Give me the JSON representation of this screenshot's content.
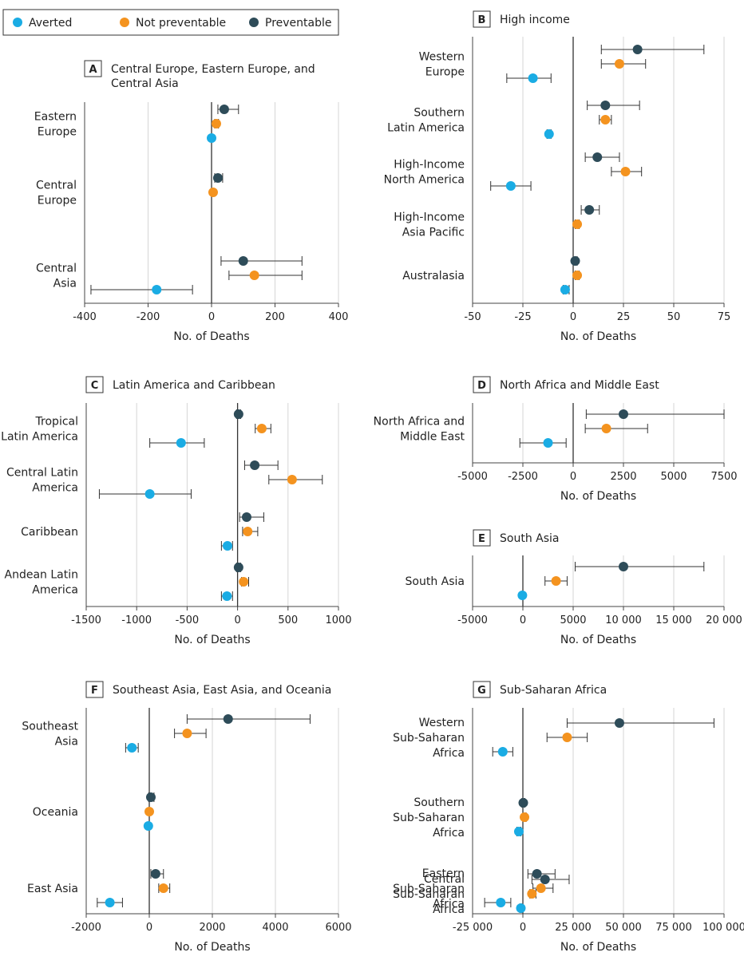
{
  "legend": {
    "items": [
      {
        "label": "Averted",
        "color": "#1aace4"
      },
      {
        "label": "Not preventable",
        "color": "#f4931f"
      },
      {
        "label": "Preventable",
        "color": "#2e4c59"
      }
    ]
  },
  "axis_label": "No. of Deaths",
  "chart_data": [
    {
      "type": "scatter",
      "panel": "A",
      "title_lines": [
        "Central Europe, Eastern Europe, and",
        "Central Asia"
      ],
      "xlabel": "No. of Deaths",
      "xlim": [
        -400,
        400
      ],
      "xticks": [
        -400,
        -200,
        0,
        200,
        400
      ],
      "xtick_labels": [
        "-400",
        "-200",
        "0",
        "200",
        "400"
      ],
      "categories": [
        {
          "label": [
            "Eastern",
            "Europe"
          ],
          "points": [
            {
              "series": "Preventable",
              "value": 40,
              "low": 20,
              "high": 85
            },
            {
              "series": "Not preventable",
              "value": 15,
              "low": 10,
              "high": 22
            },
            {
              "series": "Averted",
              "value": 0
            }
          ]
        },
        {
          "label": [
            "Central",
            "Europe"
          ],
          "points": [
            {
              "series": "Preventable",
              "value": 20,
              "low": 10,
              "high": 35
            },
            {
              "series": "Not preventable",
              "value": 5
            }
          ]
        },
        {
          "label": [
            "Central",
            "Asia"
          ],
          "points": [
            {
              "series": "Preventable",
              "value": 100,
              "low": 30,
              "high": 285
            },
            {
              "series": "Not preventable",
              "value": 135,
              "low": 55,
              "high": 285
            },
            {
              "series": "Averted",
              "value": -173,
              "low": -380,
              "high": -60
            }
          ]
        }
      ]
    },
    {
      "type": "scatter",
      "panel": "B",
      "title_lines": [
        "High income"
      ],
      "xlabel": "No. of Deaths",
      "xlim": [
        -50,
        75
      ],
      "xticks": [
        -50,
        -25,
        0,
        25,
        50,
        75
      ],
      "xtick_labels": [
        "-50",
        "-25",
        "0",
        "25",
        "50",
        "75"
      ],
      "categories": [
        {
          "label": [
            "Western",
            "Europe"
          ],
          "points": [
            {
              "series": "Preventable",
              "value": 32,
              "low": 14,
              "high": 65
            },
            {
              "series": "Not preventable",
              "value": 23,
              "low": 14,
              "high": 36
            },
            {
              "series": "Averted",
              "value": -20,
              "low": -33,
              "high": -11
            }
          ]
        },
        {
          "label": [
            "Southern",
            "Latin America"
          ],
          "points": [
            {
              "series": "Preventable",
              "value": 16,
              "low": 7,
              "high": 33
            },
            {
              "series": "Not preventable",
              "value": 16,
              "low": 13,
              "high": 19
            },
            {
              "series": "Averted",
              "value": -12,
              "low": -13,
              "high": -11
            }
          ]
        },
        {
          "label": [
            "High-Income",
            "North America"
          ],
          "points": [
            {
              "series": "Preventable",
              "value": 12,
              "low": 6,
              "high": 23
            },
            {
              "series": "Not preventable",
              "value": 26,
              "low": 19,
              "high": 34
            },
            {
              "series": "Averted",
              "value": -31,
              "low": -41,
              "high": -21
            }
          ]
        },
        {
          "label": [
            "High-Income",
            "Asia Pacific"
          ],
          "points": [
            {
              "series": "Preventable",
              "value": 8,
              "low": 4,
              "high": 13
            },
            {
              "series": "Not preventable",
              "value": 2,
              "low": 1,
              "high": 3
            }
          ]
        },
        {
          "label": [
            "Australasia"
          ],
          "points": [
            {
              "series": "Preventable",
              "value": 1,
              "low": 0,
              "high": 2
            },
            {
              "series": "Not preventable",
              "value": 2,
              "low": 1,
              "high": 3
            },
            {
              "series": "Averted",
              "value": -4,
              "low": -5,
              "high": -2
            }
          ]
        }
      ]
    },
    {
      "type": "scatter",
      "panel": "C",
      "title_lines": [
        "Latin America and Caribbean"
      ],
      "xlabel": "No. of Deaths",
      "xlim": [
        -1500,
        1000
      ],
      "xticks": [
        -1500,
        -1000,
        -500,
        0,
        500,
        1000
      ],
      "xtick_labels": [
        "-1500",
        "-1000",
        "-500",
        "0",
        "500",
        "1000"
      ],
      "categories": [
        {
          "label": [
            "Tropical",
            "Latin America"
          ],
          "points": [
            {
              "series": "Preventable",
              "value": 10,
              "low": -10,
              "high": 30
            },
            {
              "series": "Not preventable",
              "value": 240,
              "low": 175,
              "high": 330
            },
            {
              "series": "Averted",
              "value": -560,
              "low": -870,
              "high": -330
            }
          ]
        },
        {
          "label": [
            "Central Latin",
            "America"
          ],
          "points": [
            {
              "series": "Preventable",
              "value": 170,
              "low": 70,
              "high": 400
            },
            {
              "series": "Not preventable",
              "value": 540,
              "low": 310,
              "high": 840
            },
            {
              "series": "Averted",
              "value": -870,
              "low": -1370,
              "high": -460
            }
          ]
        },
        {
          "label": [
            "Caribbean"
          ],
          "points": [
            {
              "series": "Preventable",
              "value": 90,
              "low": 20,
              "high": 260
            },
            {
              "series": "Not preventable",
              "value": 100,
              "low": 50,
              "high": 200
            },
            {
              "series": "Averted",
              "value": -100,
              "low": -160,
              "high": -50
            }
          ]
        },
        {
          "label": [
            "Andean Latin",
            "America"
          ],
          "points": [
            {
              "series": "Preventable",
              "value": 10,
              "low": -10,
              "high": 30
            },
            {
              "series": "Not preventable",
              "value": 60,
              "low": 40,
              "high": 110
            },
            {
              "series": "Averted",
              "value": -105,
              "low": -160,
              "high": -50
            }
          ]
        }
      ]
    },
    {
      "type": "scatter",
      "panel": "D",
      "title_lines": [
        "North Africa and Middle East"
      ],
      "xlabel": "No. of Deaths",
      "xlim": [
        -5000,
        7500
      ],
      "xticks": [
        -5000,
        -2500,
        0,
        2500,
        5000,
        7500
      ],
      "xtick_labels": [
        "-5000",
        "-2500",
        "0",
        "2500",
        "5000",
        "7500"
      ],
      "categories": [
        {
          "label": [
            "North Africa and",
            "Middle East"
          ],
          "points": [
            {
              "series": "Preventable",
              "value": 2500,
              "low": 650,
              "high": 7500
            },
            {
              "series": "Not preventable",
              "value": 1650,
              "low": 600,
              "high": 3700
            },
            {
              "series": "Averted",
              "value": -1250,
              "low": -2650,
              "high": -350
            }
          ]
        }
      ]
    },
    {
      "type": "scatter",
      "panel": "E",
      "title_lines": [
        "South Asia"
      ],
      "xlabel": "No. of Deaths",
      "xlim": [
        -5000,
        20000
      ],
      "xticks": [
        -5000,
        0,
        5000,
        10000,
        15000,
        20000
      ],
      "xtick_labels": [
        "-5000",
        "0",
        "5000",
        "10 000",
        "15 000",
        "20 000"
      ],
      "categories": [
        {
          "label": [
            "South Asia"
          ],
          "points": [
            {
              "series": "Preventable",
              "value": 10000,
              "low": 5200,
              "high": 18000
            },
            {
              "series": "Not preventable",
              "value": 3300,
              "low": 2200,
              "high": 4400
            },
            {
              "series": "Averted",
              "value": -50
            }
          ]
        }
      ]
    },
    {
      "type": "scatter",
      "panel": "F",
      "title_lines": [
        "Southeast Asia, East Asia, and Oceania"
      ],
      "xlabel": "No. of Deaths",
      "xlim": [
        -2000,
        6000
      ],
      "xticks": [
        -2000,
        0,
        2000,
        4000,
        6000
      ],
      "xtick_labels": [
        "-2000",
        "0",
        "2000",
        "4000",
        "6000"
      ],
      "categories": [
        {
          "label": [
            "Southeast",
            "Asia"
          ],
          "points": [
            {
              "series": "Preventable",
              "value": 2500,
              "low": 1200,
              "high": 5100
            },
            {
              "series": "Not preventable",
              "value": 1200,
              "low": 800,
              "high": 1800
            },
            {
              "series": "Averted",
              "value": -550,
              "low": -750,
              "high": -350
            }
          ]
        },
        {
          "label": [
            "Oceania"
          ],
          "points": [
            {
              "series": "Preventable",
              "value": 50,
              "low": -20,
              "high": 150
            },
            {
              "series": "Not preventable",
              "value": 0
            },
            {
              "series": "Averted",
              "value": -30
            }
          ]
        },
        {
          "label": [
            "East Asia"
          ],
          "points": [
            {
              "series": "Preventable",
              "value": 200,
              "low": 50,
              "high": 450
            },
            {
              "series": "Not preventable",
              "value": 450,
              "low": 300,
              "high": 650
            },
            {
              "series": "Averted",
              "value": -1250,
              "low": -1650,
              "high": -850
            }
          ]
        }
      ]
    },
    {
      "type": "scatter",
      "panel": "G",
      "title_lines": [
        "Sub-Saharan Africa"
      ],
      "xlabel": "No. of Deaths",
      "xlim": [
        -25000,
        100000
      ],
      "xticks": [
        -25000,
        0,
        25000,
        50000,
        75000,
        100000
      ],
      "xtick_labels": [
        "-25 000",
        "0",
        "25 000",
        "50 000",
        "75 000",
        "100 000"
      ],
      "categories": [
        {
          "label": [
            "Western",
            "Sub-Saharan",
            "Africa"
          ],
          "points": [
            {
              "series": "Preventable",
              "value": 48000,
              "low": 22000,
              "high": 95000
            },
            {
              "series": "Not preventable",
              "value": 22000,
              "low": 12000,
              "high": 32000
            },
            {
              "series": "Averted",
              "value": -10000,
              "low": -15000,
              "high": -5000
            }
          ]
        },
        {
          "label": [
            "Southern",
            "Sub-Saharan",
            "Africa"
          ],
          "points": [
            {
              "series": "Preventable",
              "value": 200,
              "low": -500,
              "high": 1000
            },
            {
              "series": "Not preventable",
              "value": 800,
              "low": 0,
              "high": 1600
            },
            {
              "series": "Averted",
              "value": -2000,
              "low": -3000,
              "high": -1000
            }
          ]
        },
        {
          "label": [
            "Eastern",
            "Sub-Saharan",
            "Africa"
          ],
          "points": [
            {
              "series": "Preventable",
              "value": 7000,
              "low": 2500,
              "high": 16000
            },
            {
              "series": "Not preventable",
              "value": 9000,
              "low": 5000,
              "high": 15000
            },
            {
              "series": "Averted",
              "value": -11000,
              "low": -19000,
              "high": -6000
            }
          ]
        },
        {
          "label": [
            "Central",
            "Sub-Saharan",
            "Africa"
          ],
          "points": [
            {
              "series": "Preventable",
              "value": 11000,
              "low": 4500,
              "high": 23000
            },
            {
              "series": "Not preventable",
              "value": 4500,
              "low": 3500,
              "high": 6500
            },
            {
              "series": "Averted",
              "value": -1000,
              "low": -1500,
              "high": -500
            }
          ]
        }
      ]
    }
  ]
}
